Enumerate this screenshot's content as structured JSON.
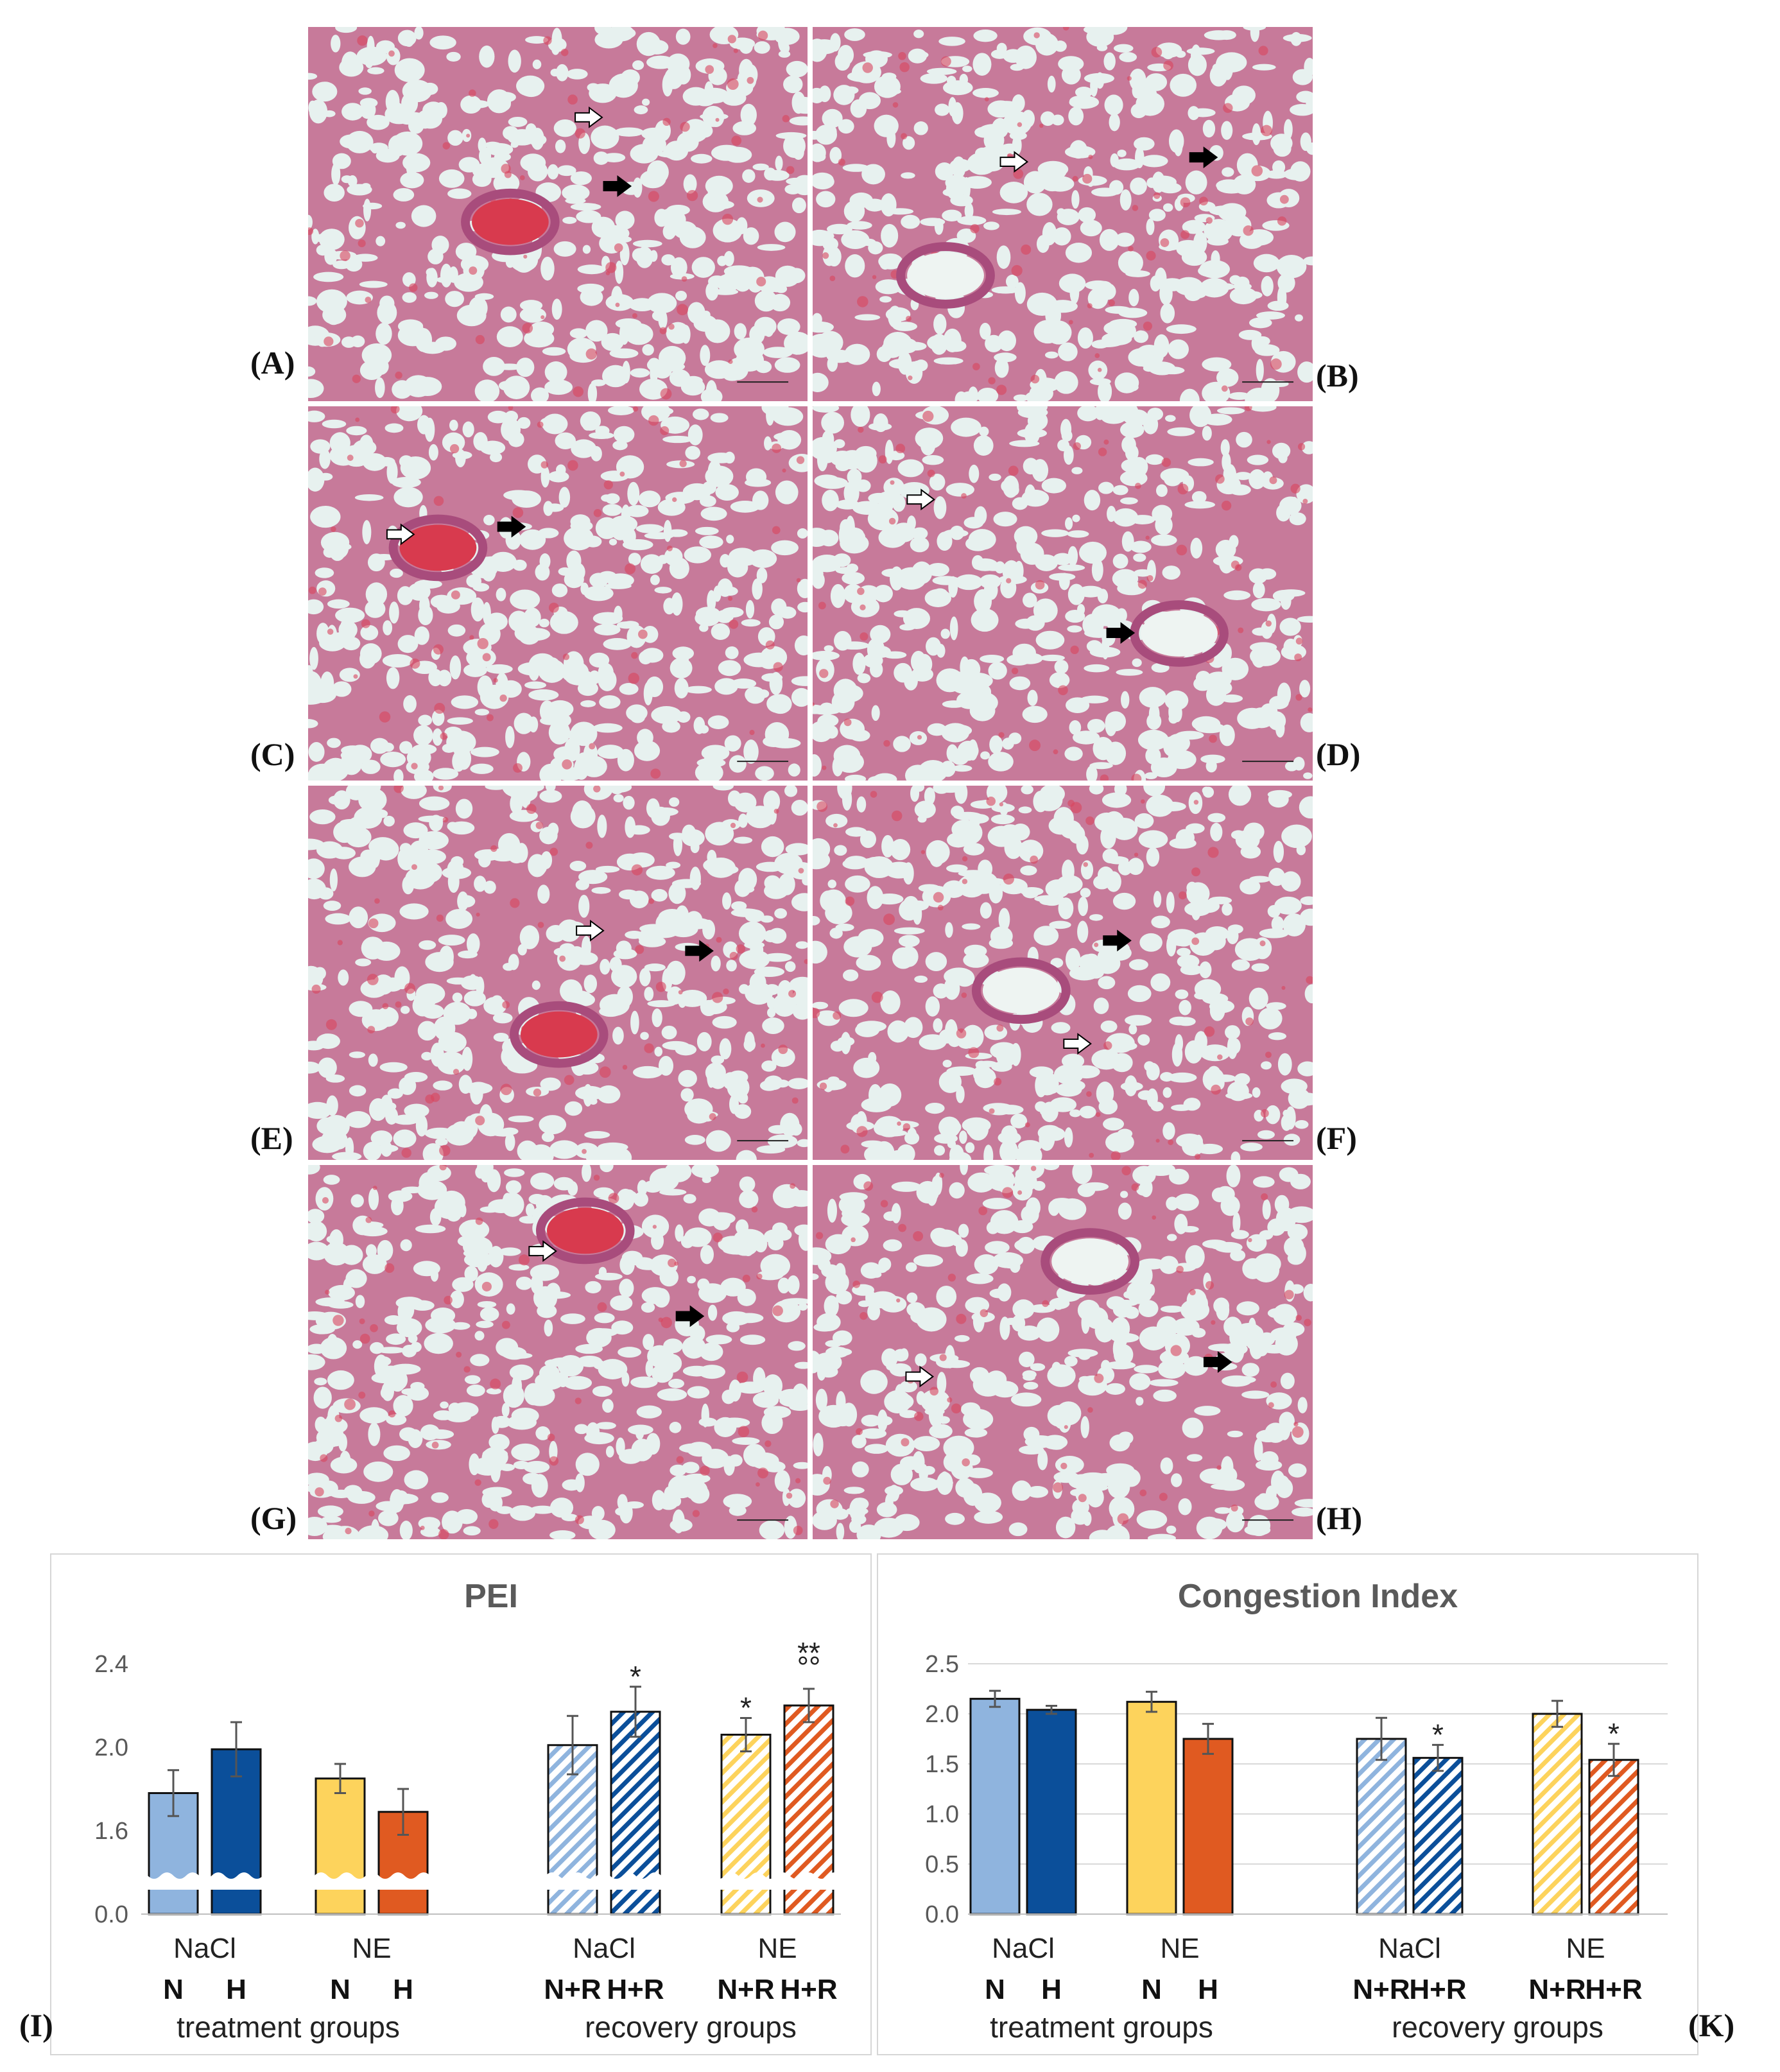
{
  "panels": [
    {
      "label": "(A)"
    },
    {
      "label": "(B)"
    },
    {
      "label": "(C)"
    },
    {
      "label": "(D)"
    },
    {
      "label": "(E)"
    },
    {
      "label": "(F)"
    },
    {
      "label": "(G)"
    },
    {
      "label": "(H)"
    }
  ],
  "chart_labels": {
    "I": "(I)",
    "K": "(K)"
  },
  "chart_data": [
    {
      "type": "bar",
      "title": "PEI",
      "xlabel": "",
      "ylabel": "",
      "ylim": [
        1.2,
        2.4
      ],
      "y_axis_break": true,
      "yticks": [
        "2.4",
        "2.0",
        "1.6",
        "0.0"
      ],
      "grid": false,
      "categories": [
        "N",
        "H",
        "N",
        "H",
        "N+R",
        "H+R",
        "N+R",
        "H+R"
      ],
      "groups": [
        "NaCl",
        "NE",
        "NaCl",
        "NE"
      ],
      "captions": [
        "treatment groups",
        "recovery groups"
      ],
      "values": [
        1.78,
        1.99,
        1.85,
        1.69,
        2.01,
        2.17,
        2.06,
        2.2
      ],
      "errors": [
        0.11,
        0.13,
        0.07,
        0.11,
        0.14,
        0.12,
        0.08,
        0.08
      ],
      "annotations": [
        "",
        "",
        "",
        "",
        "",
        "*",
        "*",
        "**\n°°"
      ],
      "colors": [
        "#8fb4de",
        "#0b4f9a",
        "#fdd35c",
        "#e05a21",
        "#8fb4de",
        "#0b4f9a",
        "#fdd35c",
        "#e05a21"
      ],
      "hatched": [
        false,
        false,
        false,
        false,
        true,
        true,
        true,
        true
      ]
    },
    {
      "type": "bar",
      "title": "Congestion Index",
      "xlabel": "",
      "ylabel": "",
      "ylim": [
        0.0,
        2.5
      ],
      "yticks": [
        "2.5",
        "2.0",
        "1.5",
        "1.0",
        "0.5",
        "0.0"
      ],
      "grid": true,
      "categories": [
        "N",
        "H",
        "N",
        "H",
        "N+R",
        "H+R",
        "N+R",
        "H+R"
      ],
      "groups": [
        "NaCl",
        "NE",
        "NaCl",
        "NE"
      ],
      "captions": [
        "treatment groups",
        "recovery groups"
      ],
      "values": [
        2.15,
        2.04,
        2.12,
        1.75,
        1.75,
        1.56,
        2.0,
        1.54
      ],
      "errors": [
        0.08,
        0.04,
        0.1,
        0.15,
        0.21,
        0.13,
        0.13,
        0.16
      ],
      "annotations": [
        "",
        "",
        "",
        "",
        "",
        "*",
        "",
        "*"
      ],
      "colors": [
        "#8fb4de",
        "#0b4f9a",
        "#fdd35c",
        "#e05a21",
        "#8fb4de",
        "#0b4f9a",
        "#fdd35c",
        "#e05a21"
      ],
      "hatched": [
        false,
        false,
        false,
        false,
        true,
        true,
        true,
        true
      ]
    }
  ]
}
